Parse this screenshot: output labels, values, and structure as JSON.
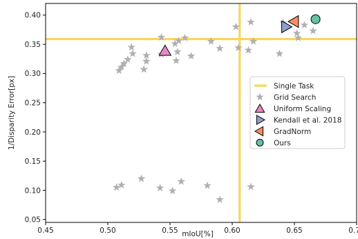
{
  "chart_data": {
    "type": "scatter",
    "xlabel": "mIoU[%]",
    "ylabel": "1/Disparity Error[px]",
    "xlim": [
      0.45,
      0.7
    ],
    "ylim": [
      0.045,
      0.42
    ],
    "xticks": [
      "0.45",
      "0.50",
      "0.55",
      "0.60",
      "0.65",
      "0.70"
    ],
    "xtick_values": [
      0.45,
      0.5,
      0.55,
      0.6,
      0.65,
      0.7
    ],
    "yticks": [
      "0.05",
      "0.10",
      "0.15",
      "0.20",
      "0.25",
      "0.30",
      "0.35",
      "0.40"
    ],
    "ytick_values": [
      0.05,
      0.1,
      0.15,
      0.2,
      0.25,
      0.3,
      0.35,
      0.4
    ],
    "grid": false,
    "legend_position": "center-right",
    "single_task": {
      "name": "Single Task",
      "x": 0.606,
      "y": 0.359,
      "color": "#f7d65a"
    },
    "grid_search": {
      "name": "Grid Search",
      "color": "#b0b0b0",
      "points": [
        [
          0.509,
          0.305
        ],
        [
          0.511,
          0.311
        ],
        [
          0.513,
          0.317
        ],
        [
          0.516,
          0.324
        ],
        [
          0.519,
          0.345
        ],
        [
          0.52,
          0.334
        ],
        [
          0.529,
          0.307
        ],
        [
          0.531,
          0.321
        ],
        [
          0.531,
          0.331
        ],
        [
          0.543,
          0.362
        ],
        [
          0.543,
          0.333
        ],
        [
          0.554,
          0.351
        ],
        [
          0.555,
          0.322
        ],
        [
          0.556,
          0.337
        ],
        [
          0.557,
          0.356
        ],
        [
          0.562,
          0.361
        ],
        [
          0.567,
          0.33
        ],
        [
          0.583,
          0.355
        ],
        [
          0.59,
          0.343
        ],
        [
          0.603,
          0.38
        ],
        [
          0.605,
          0.344
        ],
        [
          0.613,
          0.34
        ],
        [
          0.615,
          0.388
        ],
        [
          0.617,
          0.355
        ],
        [
          0.638,
          0.334
        ],
        [
          0.641,
          0.387
        ],
        [
          0.652,
          0.369
        ],
        [
          0.653,
          0.361
        ],
        [
          0.658,
          0.383
        ],
        [
          0.665,
          0.373
        ],
        [
          0.507,
          0.105
        ],
        [
          0.511,
          0.109
        ],
        [
          0.527,
          0.12
        ],
        [
          0.542,
          0.104
        ],
        [
          0.552,
          0.099
        ],
        [
          0.559,
          0.115
        ],
        [
          0.58,
          0.108
        ],
        [
          0.59,
          0.084
        ],
        [
          0.615,
          0.106
        ]
      ]
    },
    "uniform_scaling": {
      "name": "Uniform Scaling",
      "x": 0.546,
      "y": 0.338,
      "color": "#e78ac3"
    },
    "kendall": {
      "name": "Kendall et al. 2018",
      "x": 0.643,
      "y": 0.38,
      "color": "#8da0cb"
    },
    "gradnorm": {
      "name": "GradNorm",
      "x": 0.65,
      "y": 0.389,
      "color": "#fc8d62"
    },
    "ours": {
      "name": "Ours",
      "x": 0.667,
      "y": 0.393,
      "color": "#66c2a5"
    }
  }
}
